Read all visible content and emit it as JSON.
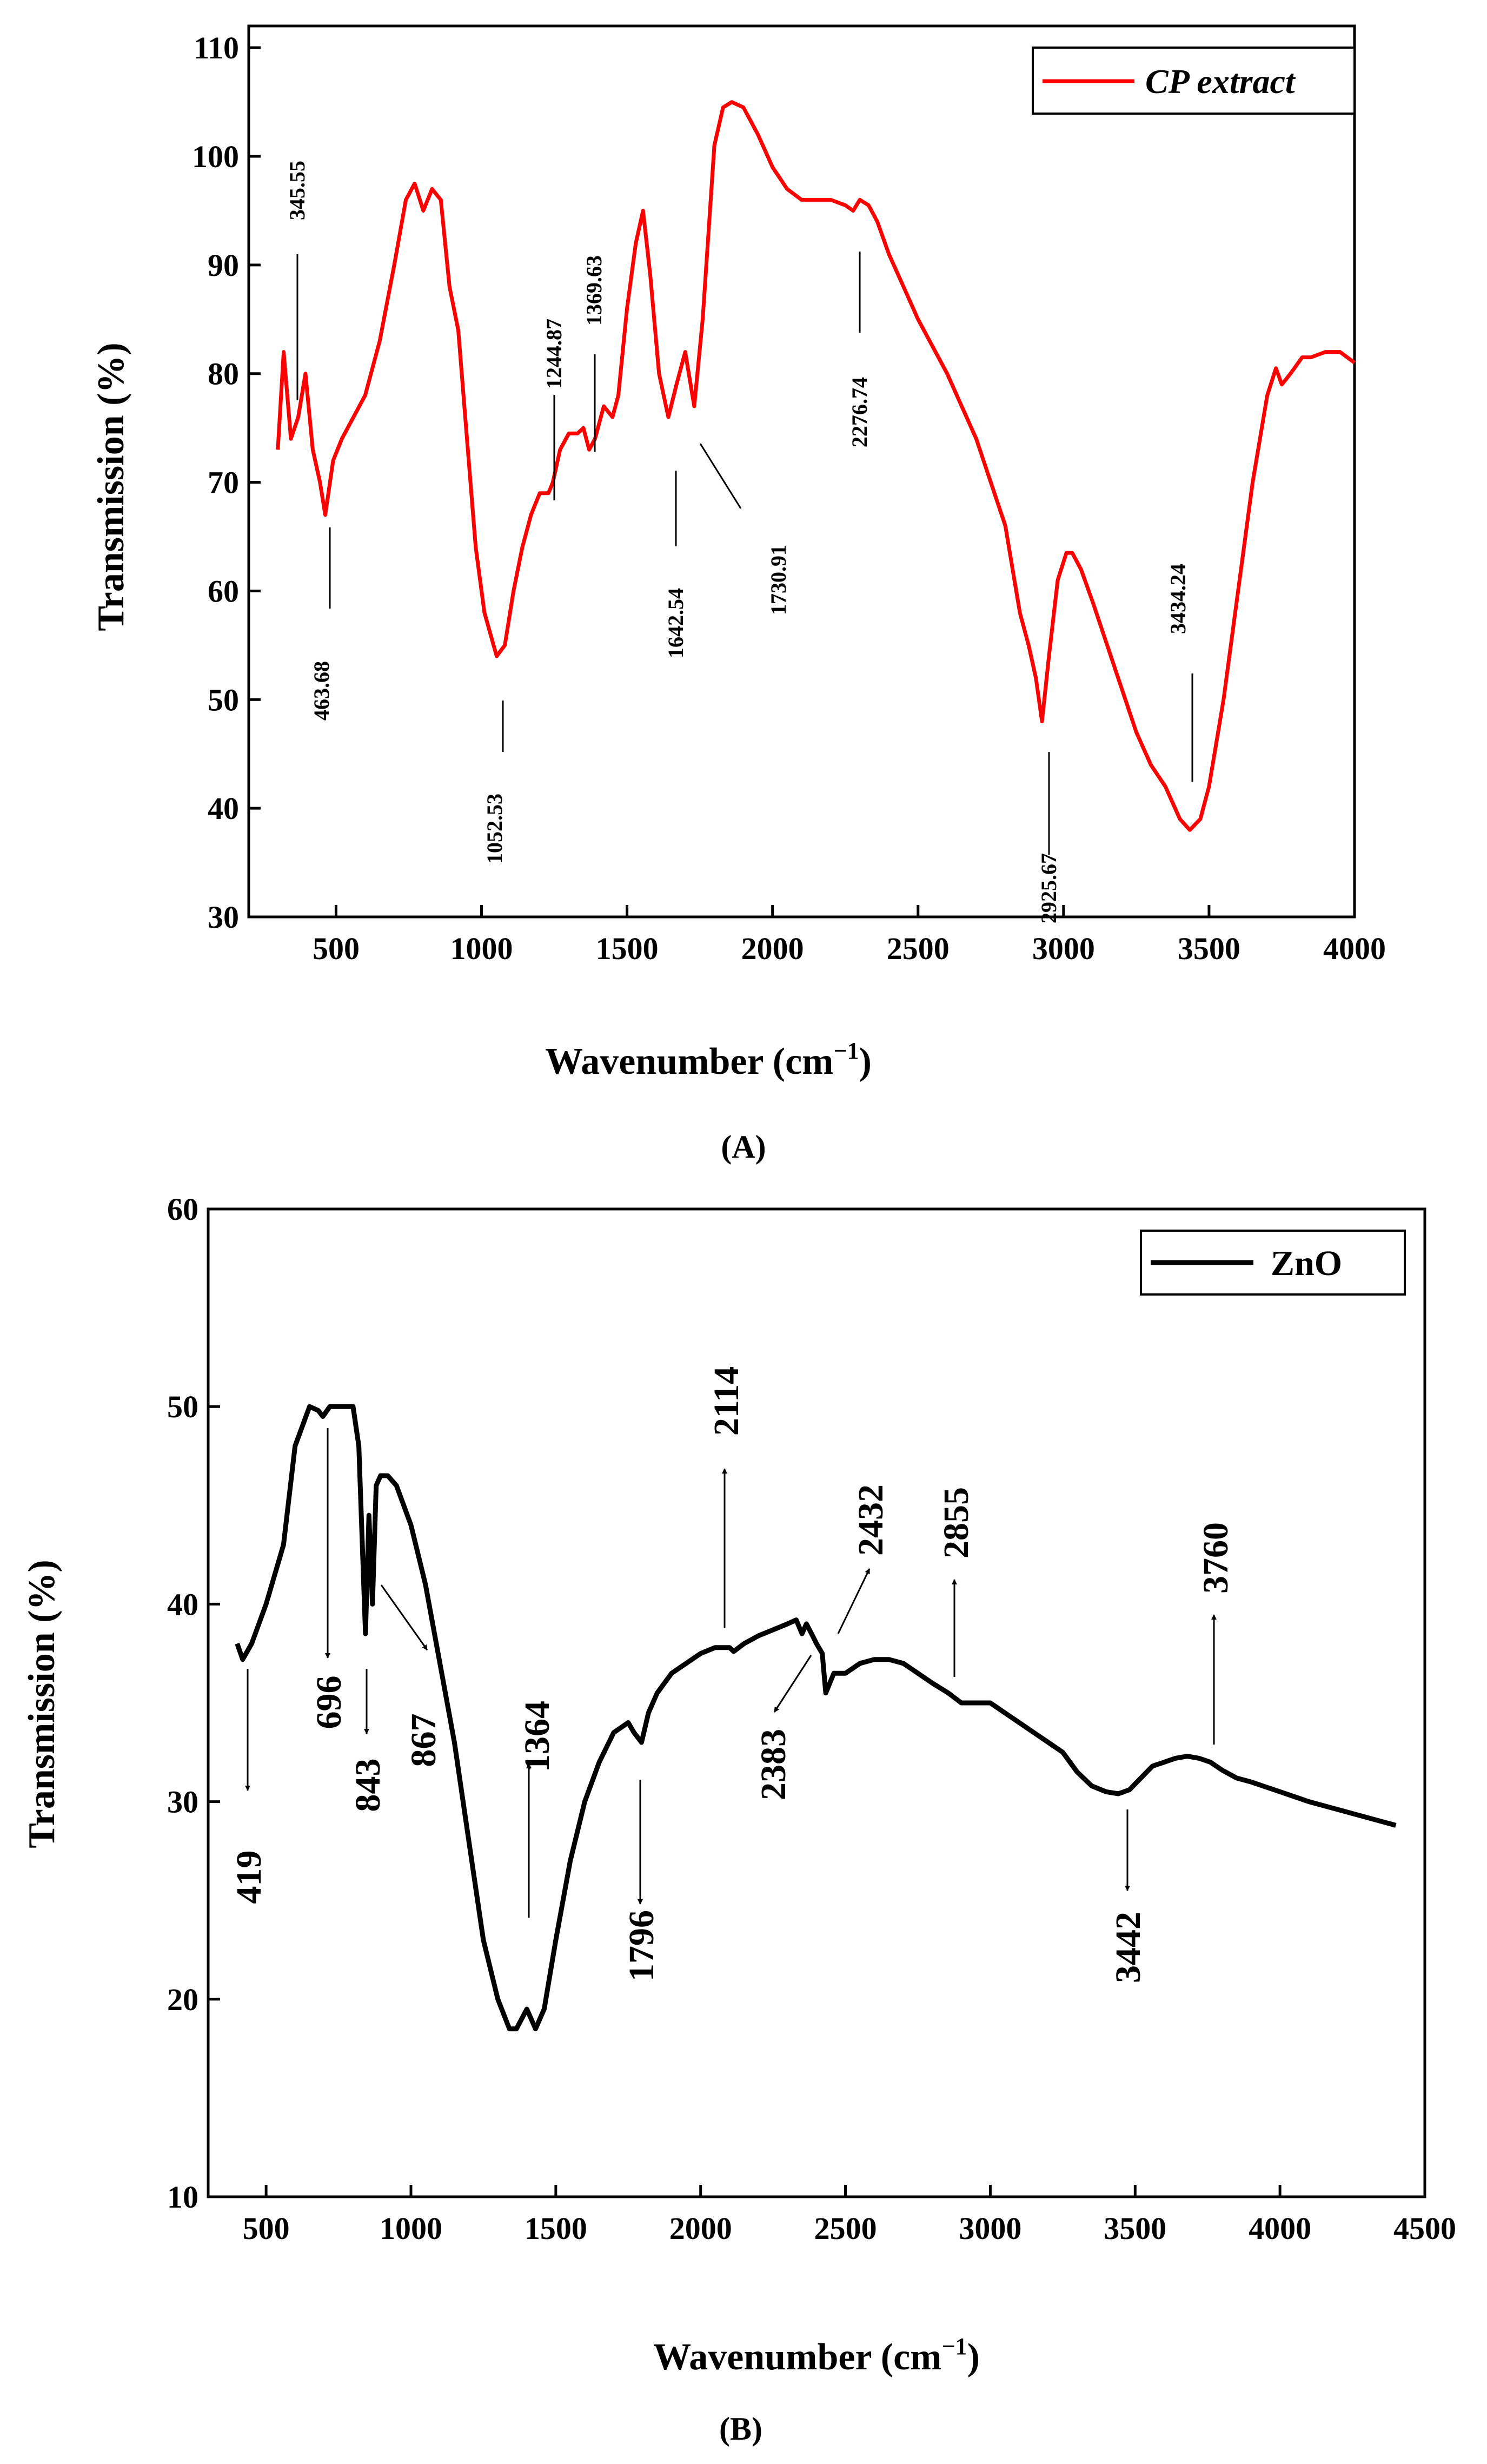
{
  "figure": {
    "panels": [
      {
        "id": "A",
        "panel_label": "(A)",
        "legend": "CP extract",
        "xlabel": "Wavenumber (cm",
        "xlabel_sup": "−1",
        "xlabel_close": ")",
        "ylabel": "Transmission (%)",
        "xlim": [
          200,
          4000
        ],
        "ylim": [
          30,
          112
        ],
        "xticks": [
          500,
          1000,
          1500,
          2000,
          2500,
          3000,
          3500,
          4000
        ],
        "yticks": [
          30,
          40,
          50,
          60,
          70,
          80,
          90,
          100,
          110
        ],
        "color": "#ff0000",
        "annotations": [
          "345.55",
          "463.68",
          "1052.53",
          "1244.87",
          "1369.63",
          "1642.54",
          "1730.91",
          "2276.74",
          "2925.67",
          "3434.24"
        ]
      },
      {
        "id": "B",
        "panel_label": "(B)",
        "legend": "ZnO",
        "xlabel": "Wavenumber (cm",
        "xlabel_sup": "−1",
        "xlabel_close": ")",
        "ylabel": "Transmission (%)",
        "xlim": [
          300,
          4500
        ],
        "ylim": [
          10,
          60
        ],
        "xticks": [
          500,
          1000,
          1500,
          2000,
          2500,
          3000,
          3500,
          4000,
          4500
        ],
        "yticks": [
          10,
          20,
          30,
          40,
          50,
          60
        ],
        "color": "#000000",
        "annotations": [
          "419",
          "696",
          "843",
          "867",
          "1364",
          "1796",
          "2114",
          "2383",
          "2432",
          "2855",
          "3442",
          "3760"
        ]
      }
    ]
  },
  "chart_data": [
    {
      "type": "line",
      "title": "",
      "xlabel": "Wavenumber (cm−1)",
      "ylabel": "Transmission (%)",
      "xlim": [
        200,
        4000
      ],
      "ylim": [
        30,
        112
      ],
      "series": [
        {
          "name": "CP extract",
          "color": "#ff0000",
          "x": [
            300,
            320,
            345,
            370,
            395,
            420,
            445,
            463,
            490,
            520,
            560,
            600,
            650,
            700,
            740,
            770,
            800,
            830,
            860,
            890,
            920,
            950,
            980,
            1010,
            1052,
            1080,
            1110,
            1140,
            1170,
            1200,
            1230,
            1245,
            1270,
            1300,
            1330,
            1350,
            1370,
            1390,
            1420,
            1450,
            1470,
            1500,
            1530,
            1555,
            1580,
            1610,
            1642,
            1670,
            1700,
            1731,
            1760,
            1800,
            1830,
            1860,
            1900,
            1950,
            2000,
            2050,
            2100,
            2150,
            2200,
            2250,
            2277,
            2300,
            2330,
            2360,
            2400,
            2450,
            2500,
            2600,
            2700,
            2800,
            2850,
            2880,
            2905,
            2926,
            2950,
            2980,
            3010,
            3030,
            3060,
            3100,
            3150,
            3200,
            3250,
            3300,
            3350,
            3400,
            3434,
            3470,
            3500,
            3550,
            3600,
            3650,
            3700,
            3730,
            3750,
            3780,
            3820,
            3850,
            3900,
            3950,
            4000
          ],
          "y": [
            73,
            82,
            74,
            76,
            80,
            73,
            70,
            67,
            72,
            74,
            76,
            78,
            83,
            90,
            96,
            97.5,
            95,
            97,
            96,
            88,
            84,
            74,
            64,
            58,
            54,
            55,
            60,
            64,
            67,
            69,
            69,
            70,
            73,
            74.5,
            74.5,
            75,
            73,
            74,
            77,
            76,
            78,
            86,
            92,
            95,
            89,
            80,
            76,
            79,
            82,
            77,
            85,
            101,
            104.5,
            105,
            104.5,
            102,
            99,
            97,
            96,
            96,
            96,
            95.5,
            95,
            96,
            95.5,
            94,
            91,
            88,
            85,
            80,
            74,
            66,
            58,
            55,
            52,
            48,
            54,
            61,
            63.5,
            63.5,
            62,
            59,
            55,
            51,
            47,
            44,
            42,
            39,
            38,
            39,
            42,
            50,
            60,
            70,
            78,
            80.5,
            79,
            80,
            81.5,
            81.5,
            82,
            82,
            81
          ]
        }
      ],
      "annotations": [
        {
          "label": "345.55",
          "x": 345.55
        },
        {
          "label": "463.68",
          "x": 463.68
        },
        {
          "label": "1052.53",
          "x": 1052.53
        },
        {
          "label": "1244.87",
          "x": 1244.87
        },
        {
          "label": "1369.63",
          "x": 1369.63
        },
        {
          "label": "1642.54",
          "x": 1642.54
        },
        {
          "label": "1730.91",
          "x": 1730.91
        },
        {
          "label": "2276.74",
          "x": 2276.74
        },
        {
          "label": "2925.67",
          "x": 2925.67
        },
        {
          "label": "3434.24",
          "x": 3434.24
        }
      ]
    },
    {
      "type": "line",
      "title": "",
      "xlabel": "Wavenumber (cm−1)",
      "ylabel": "Transmission (%)",
      "xlim": [
        300,
        4500
      ],
      "ylim": [
        10,
        60
      ],
      "series": [
        {
          "name": "ZnO",
          "color": "#000000",
          "x": [
            400,
            419,
            450,
            500,
            560,
            600,
            650,
            680,
            696,
            720,
            760,
            800,
            820,
            843,
            855,
            867,
            880,
            895,
            920,
            950,
            1000,
            1050,
            1100,
            1150,
            1200,
            1250,
            1300,
            1340,
            1364,
            1400,
            1430,
            1460,
            1500,
            1550,
            1600,
            1650,
            1700,
            1750,
            1770,
            1796,
            1820,
            1850,
            1900,
            1950,
            2000,
            2050,
            2100,
            2114,
            2150,
            2200,
            2250,
            2300,
            2330,
            2350,
            2365,
            2383,
            2400,
            2420,
            2432,
            2460,
            2500,
            2550,
            2600,
            2650,
            2700,
            2750,
            2800,
            2855,
            2900,
            2950,
            3000,
            3050,
            3100,
            3150,
            3200,
            3250,
            3300,
            3350,
            3400,
            3442,
            3480,
            3520,
            3560,
            3600,
            3640,
            3680,
            3720,
            3760,
            3800,
            3850,
            3900,
            4000,
            4100,
            4200,
            4300,
            4400
          ],
          "y": [
            38,
            37.2,
            38,
            40,
            43,
            48,
            50,
            49.8,
            49.5,
            50,
            50,
            50,
            48,
            38.5,
            44.5,
            40,
            46,
            46.5,
            46.5,
            46,
            44,
            41,
            37,
            33,
            28,
            23,
            20,
            18.5,
            18.5,
            19.5,
            18.5,
            19.5,
            23,
            27,
            30,
            32,
            33.5,
            34,
            33.5,
            33,
            34.5,
            35.5,
            36.5,
            37,
            37.5,
            37.8,
            37.8,
            37.6,
            38,
            38.4,
            38.7,
            39,
            39.2,
            38.5,
            39,
            38.5,
            38,
            37.5,
            35.5,
            36.5,
            36.5,
            37,
            37.2,
            37.2,
            37,
            36.5,
            36,
            35.5,
            35,
            35,
            35,
            34.5,
            34,
            33.5,
            33,
            32.5,
            31.5,
            30.8,
            30.5,
            30.4,
            30.6,
            31.2,
            31.8,
            32,
            32.2,
            32.3,
            32.2,
            32,
            31.6,
            31.2,
            31,
            30.5,
            30,
            29.6,
            29.2,
            28.8
          ]
        }
      ],
      "annotations": [
        {
          "label": "419",
          "x": 419
        },
        {
          "label": "696",
          "x": 696
        },
        {
          "label": "843",
          "x": 843
        },
        {
          "label": "867",
          "x": 867
        },
        {
          "label": "1364",
          "x": 1364
        },
        {
          "label": "1796",
          "x": 1796
        },
        {
          "label": "2114",
          "x": 2114
        },
        {
          "label": "2383",
          "x": 2383
        },
        {
          "label": "2432",
          "x": 2432
        },
        {
          "label": "2855",
          "x": 2855
        },
        {
          "label": "3442",
          "x": 3442
        },
        {
          "label": "3760",
          "x": 3760
        }
      ]
    }
  ]
}
